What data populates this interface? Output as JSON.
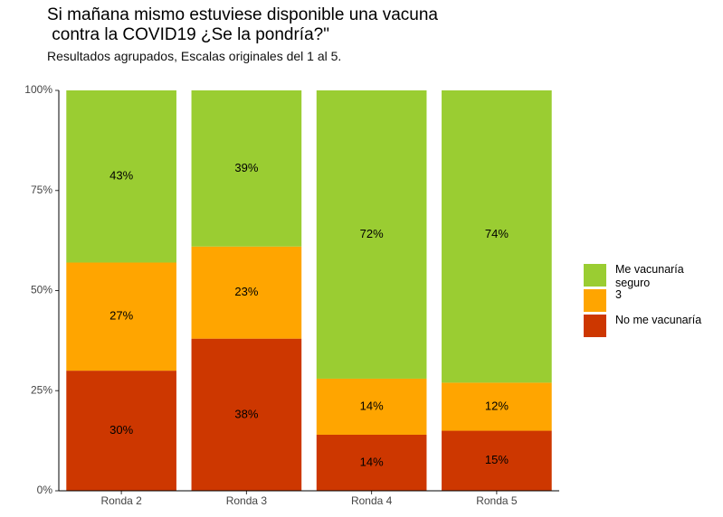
{
  "chart_data": {
    "type": "stacked_bar",
    "title": "Si mañana mismo estuviese disponible una vacuna\n contra la COVID19 ¿Se la pondría?\"",
    "subtitle": "Resultados agrupados, Escalas originales del 1 al 5.",
    "categories": [
      "Ronda 2",
      "Ronda 3",
      "Ronda 4",
      "Ronda 5"
    ],
    "series": [
      {
        "name": "No me vacunaría",
        "color": "#cd3700",
        "values": [
          30,
          38,
          14,
          15
        ],
        "value_labels": [
          "30%",
          "38%",
          "14%",
          "15%"
        ]
      },
      {
        "name": "3",
        "color": "#ffa500",
        "values": [
          27,
          23,
          14,
          12
        ],
        "value_labels": [
          "27%",
          "23%",
          "14%",
          "12%"
        ]
      },
      {
        "name": "Me vacunaría seguro",
        "color": "#9acd32",
        "values": [
          43,
          39,
          72,
          74
        ],
        "value_labels": [
          "43%",
          "39%",
          "72%",
          "74%"
        ]
      }
    ],
    "ylim": [
      0,
      100
    ],
    "yticks": [
      {
        "value": 0,
        "label": "0%"
      },
      {
        "value": 25,
        "label": "25%"
      },
      {
        "value": 50,
        "label": "50%"
      },
      {
        "value": 75,
        "label": "75%"
      },
      {
        "value": 100,
        "label": "100%"
      }
    ],
    "grid": false,
    "legend": "right"
  }
}
